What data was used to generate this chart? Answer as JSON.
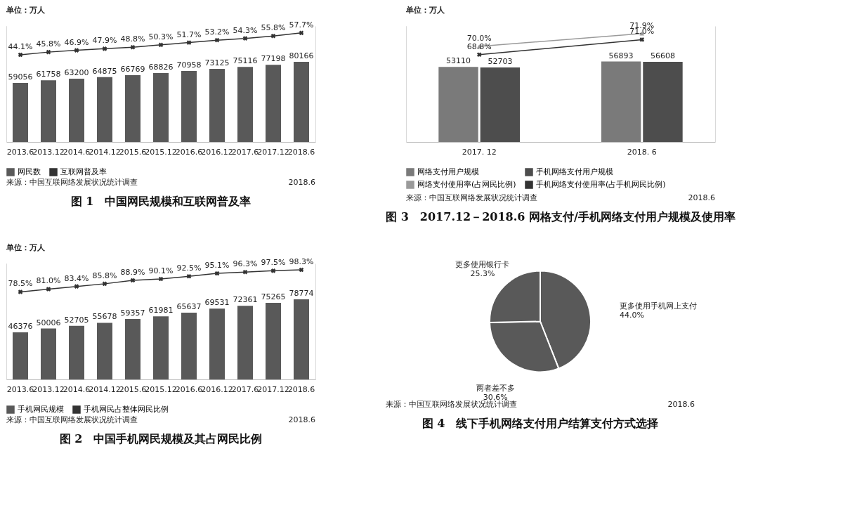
{
  "chart_data": [
    {
      "type": "bar",
      "title": "图 1　中国网民规模和互联网普及率",
      "annotations": [
        "单位：万人",
        "来源：中国互联网络发展状况统计调查",
        "2018.6"
      ],
      "ylim": [
        0,
        116000
      ],
      "y2lim": [
        -10,
        62
      ],
      "categories": [
        "2013.6",
        "2013.12",
        "2014.6",
        "2014.12",
        "2015.6",
        "2015.12",
        "2016.6",
        "2016.12",
        "2017.6",
        "2017.12",
        "2018.6"
      ],
      "data_labels": true,
      "legend": "bottom",
      "series": [
        {
          "name": "网民数",
          "color": "#595959",
          "values": [
            59056,
            61758,
            63200,
            64875,
            66769,
            68826,
            70958,
            73125,
            75116,
            77198,
            80166
          ]
        },
        {
          "name": "互联网普及率",
          "type": "line",
          "axis": "y2",
          "marker": "cross",
          "color": "#333333",
          "values": [
            44.1,
            45.8,
            46.9,
            47.9,
            48.8,
            50.3,
            51.7,
            53.2,
            54.3,
            55.8,
            57.7
          ],
          "value_labels": [
            "44.1%",
            "45.8%",
            "46.9%",
            "47.9%",
            "48.8%",
            "50.3%",
            "51.7%",
            "53.2%",
            "54.3%",
            "55.8%",
            "57.7%"
          ]
        }
      ]
    },
    {
      "type": "bar",
      "title": "图 3　2017.12－2018.6 网格支付/手机网络支付用户规模及使用率",
      "annotations": [
        "单位：万人",
        "来源：中国互联网络发展状况统计调查",
        "2018.6"
      ],
      "ylim": [
        0,
        82000
      ],
      "y2lim": [
        56,
        73
      ],
      "categories": [
        "2017. 12",
        "2018. 6"
      ],
      "data_labels": true,
      "legend": "bottom",
      "series": [
        {
          "name": "网络支付用户规模",
          "color": "#7a7a7a",
          "values": [
            53110,
            56893
          ]
        },
        {
          "name": "手机网络支付用户规模",
          "color": "#4d4d4d",
          "values": [
            52703,
            56608
          ]
        },
        {
          "name": "网络支付使用率(占网民比例)",
          "type": "line",
          "axis": "y2",
          "marker": "triangle",
          "color": "#9a9a9a",
          "values": [
            70.0,
            71.9
          ],
          "value_labels": [
            "70.0%",
            "71.9%"
          ]
        },
        {
          "name": "手机网络支付使用率(占手机网民比例)",
          "type": "line",
          "axis": "y2",
          "marker": "cross",
          "color": "#333333",
          "values": [
            68.8,
            71.0
          ],
          "value_labels": [
            "68.8%",
            "71.0%"
          ]
        }
      ]
    },
    {
      "type": "bar",
      "title": "图 2　中国手机网民规模及其占网民比例",
      "annotations": [
        "单位：万人",
        "来源：中国互联网络发展状况统计调查",
        "2018.6"
      ],
      "ylim": [
        0,
        114000
      ],
      "y2lim": [
        0,
        104
      ],
      "categories": [
        "2013.6",
        "2013.12",
        "2014.6",
        "2014.12",
        "2015.6",
        "2015.12",
        "2016.6",
        "2016.12",
        "2017.6",
        "2017.12",
        "2018.6"
      ],
      "data_labels": true,
      "legend": "bottom",
      "series": [
        {
          "name": "手机网民规模",
          "color": "#595959",
          "values": [
            46376,
            50006,
            52705,
            55678,
            59357,
            61981,
            65637,
            69531,
            72361,
            75265,
            78774
          ]
        },
        {
          "name": "手机网民占整体网民比例",
          "type": "line",
          "axis": "y2",
          "marker": "cross",
          "color": "#333333",
          "values": [
            78.5,
            81.0,
            83.4,
            85.8,
            88.9,
            90.1,
            92.5,
            95.1,
            96.3,
            97.5,
            98.3
          ],
          "value_labels": [
            "78.5%",
            "81.0%",
            "83.4%",
            "85.8%",
            "88.9%",
            "90.1%",
            "92.5%",
            "95.1%",
            "96.3%",
            "97.5%",
            "98.3%"
          ]
        }
      ]
    },
    {
      "type": "pie",
      "title": "图 4　线下手机网络支付用户结算支付方式选择",
      "annotations": [
        "来源：中国互联网络发展状况统计调查",
        "2018.6"
      ],
      "categories": [
        "更多使用手机网上支付",
        "两者差不多",
        "更多使用银行卡"
      ],
      "values": [
        44.0,
        30.6,
        25.3
      ],
      "value_labels": [
        "44.0%",
        "30.6%",
        "25.3%"
      ],
      "colors": [
        "#595959",
        "#595959",
        "#595959"
      ]
    }
  ]
}
